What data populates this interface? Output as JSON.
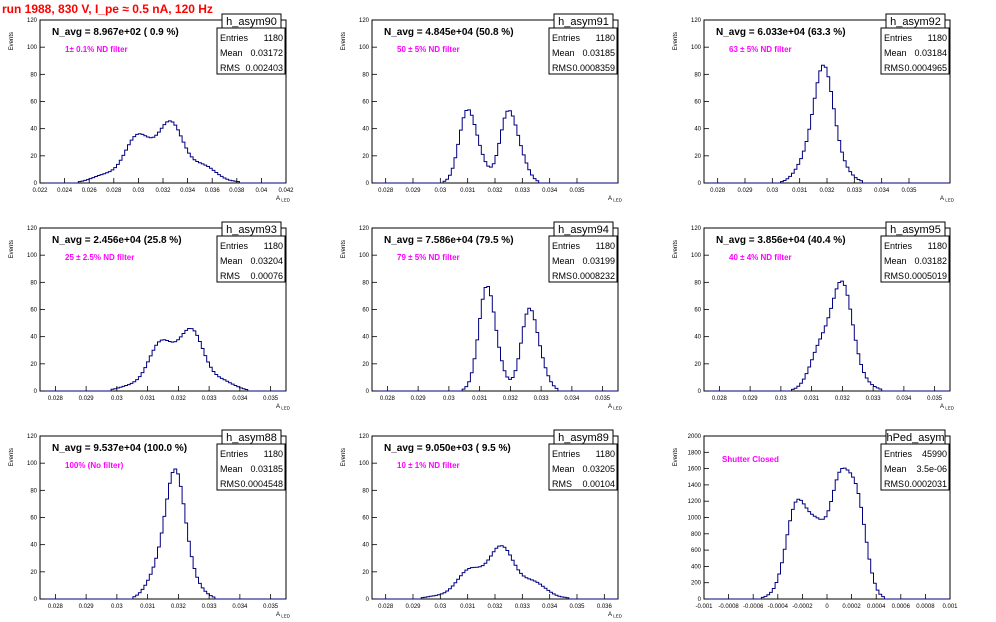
{
  "page": {
    "title": "run 1988,   830 V, I_pe ≈ 0.5 nA, 120 Hz"
  },
  "colors": {
    "title": "#ff0000",
    "annotation": "#ff00ff",
    "histogram": "#000080",
    "frame": "#000000"
  },
  "chart_data": [
    {
      "type": "histogram",
      "name": "h_asym90",
      "title": "N_avg = 8.967e+02 ( 0.9 %)",
      "annotation": "1± 0.1% ND filter",
      "stats": {
        "entries": "1180",
        "mean": "0.03172",
        "rms": "0.002403"
      },
      "xlabel": "A_LED",
      "ylabel": "Events",
      "xlim": [
        0.022,
        0.042
      ],
      "ylim": [
        0,
        120
      ],
      "xticks": [
        "0.022",
        "0.024",
        "0.026",
        "0.028",
        "0.03",
        "0.032",
        "0.034",
        "0.036",
        "0.038",
        "0.04",
        "0.042"
      ],
      "yticks": [
        "0",
        "20",
        "40",
        "60",
        "80",
        "100",
        "120"
      ],
      "peaks": [
        {
          "x": 0.03172,
          "w": 0.0024,
          "h": 42
        }
      ]
    },
    {
      "type": "histogram",
      "name": "h_asym91",
      "title": "N_avg = 4.845e+04 (50.8 %)",
      "annotation": "50 ± 5% ND filter",
      "stats": {
        "entries": "1180",
        "mean": "0.03185",
        "rms": "0.0008359"
      },
      "xlabel": "A_LED",
      "ylabel": "Events",
      "xlim": [
        0.0275,
        0.0365
      ],
      "ylim": [
        0,
        120
      ],
      "xticks": [
        "0.028",
        "0.029",
        "0.03",
        "0.031",
        "0.032",
        "0.033",
        "0.034",
        "0.035"
      ],
      "yticks": [
        "0",
        "20",
        "40",
        "60",
        "80",
        "100",
        "120"
      ],
      "peaks": [
        {
          "x": 0.0311,
          "w": 0.00035,
          "h": 55
        },
        {
          "x": 0.0326,
          "w": 0.00035,
          "h": 55
        }
      ]
    },
    {
      "type": "histogram",
      "name": "h_asym92",
      "title": "N_avg = 6.033e+04 (63.3 %)",
      "annotation": "63 ± 5% ND filter",
      "stats": {
        "entries": "1180",
        "mean": "0.03184",
        "rms": "0.0004965"
      },
      "xlabel": "A_LED",
      "ylabel": "Events",
      "xlim": [
        0.0275,
        0.0365
      ],
      "ylim": [
        0,
        120
      ],
      "xticks": [
        "0.028",
        "0.029",
        "0.03",
        "0.031",
        "0.032",
        "0.033",
        "0.034",
        "0.035"
      ],
      "yticks": [
        "0",
        "20",
        "40",
        "60",
        "80",
        "100",
        "120"
      ],
      "peaks": [
        {
          "x": 0.03184,
          "w": 0.0005,
          "h": 74
        }
      ]
    },
    {
      "type": "histogram",
      "name": "h_asym93",
      "title": "N_avg = 2.456e+04 (25.8 %)",
      "annotation": "25 ± 2.5% ND filter",
      "stats": {
        "entries": "1180",
        "mean": "0.03204",
        "rms": "0.00076"
      },
      "xlabel": "A_LED",
      "ylabel": "Events",
      "xlim": [
        0.0275,
        0.0355
      ],
      "ylim": [
        0,
        120
      ],
      "xticks": [
        "0.028",
        "0.029",
        "0.03",
        "0.031",
        "0.032",
        "0.033",
        "0.034",
        "0.035"
      ],
      "yticks": [
        "0",
        "20",
        "40",
        "60",
        "80",
        "100",
        "120"
      ],
      "peaks": [
        {
          "x": 0.03204,
          "w": 0.0008,
          "h": 45
        }
      ]
    },
    {
      "type": "histogram",
      "name": "h_asym94",
      "title": "N_avg = 7.586e+04 (79.5 %)",
      "annotation": "79 ± 5% ND filter",
      "stats": {
        "entries": "1180",
        "mean": "0.03199",
        "rms": "0.0008232"
      },
      "xlabel": "A_LED",
      "ylabel": "Events",
      "xlim": [
        0.0275,
        0.0355
      ],
      "ylim": [
        0,
        120
      ],
      "xticks": [
        "0.028",
        "0.029",
        "0.03",
        "0.031",
        "0.032",
        "0.033",
        "0.034",
        "0.035"
      ],
      "yticks": [
        "0",
        "20",
        "40",
        "60",
        "80",
        "100",
        "120"
      ],
      "peaks": [
        {
          "x": 0.0313,
          "w": 0.0003,
          "h": 72
        },
        {
          "x": 0.0327,
          "w": 0.0003,
          "h": 60
        }
      ]
    },
    {
      "type": "histogram",
      "name": "h_asym95",
      "title": "N_avg = 3.856e+04 (40.4 %)",
      "annotation": "40 ± 4% ND filter",
      "stats": {
        "entries": "1180",
        "mean": "0.03182",
        "rms": "0.0005019"
      },
      "xlabel": "A_LED",
      "ylabel": "Events",
      "xlim": [
        0.0275,
        0.0355
      ],
      "ylim": [
        0,
        120
      ],
      "xticks": [
        "0.028",
        "0.029",
        "0.03",
        "0.031",
        "0.032",
        "0.033",
        "0.034",
        "0.035"
      ],
      "yticks": [
        "0",
        "20",
        "40",
        "60",
        "80",
        "100",
        "120"
      ],
      "peaks": [
        {
          "x": 0.03182,
          "w": 0.0005,
          "h": 76
        }
      ]
    },
    {
      "type": "histogram",
      "name": "h_asym88",
      "title": "N_avg = 9.537e+04 (100.0 %)",
      "annotation": "100% (No filter)",
      "stats": {
        "entries": "1180",
        "mean": "0.03185",
        "rms": "0.0004548"
      },
      "xlabel": "A_LED",
      "ylabel": "Events",
      "xlim": [
        0.0275,
        0.0355
      ],
      "ylim": [
        0,
        120
      ],
      "xticks": [
        "0.028",
        "0.029",
        "0.03",
        "0.031",
        "0.032",
        "0.033",
        "0.034",
        "0.035"
      ],
      "yticks": [
        "0",
        "20",
        "40",
        "60",
        "80",
        "100",
        "120"
      ],
      "peaks": [
        {
          "x": 0.03185,
          "w": 0.00045,
          "h": 82
        }
      ]
    },
    {
      "type": "histogram",
      "name": "h_asym89",
      "title": "N_avg = 9.050e+03 ( 9.5 %)",
      "annotation": "10 ± 1% ND filter",
      "stats": {
        "entries": "1180",
        "mean": "0.03205",
        "rms": "0.00104"
      },
      "xlabel": "A_LED",
      "ylabel": "Events",
      "xlim": [
        0.0275,
        0.0365
      ],
      "ylim": [
        0,
        120
      ],
      "xticks": [
        "0.028",
        "0.029",
        "0.03",
        "0.031",
        "0.032",
        "0.033",
        "0.034",
        "0.035",
        "0.036"
      ],
      "yticks": [
        "0",
        "20",
        "40",
        "60",
        "80",
        "100",
        "120"
      ],
      "peaks": [
        {
          "x": 0.03205,
          "w": 0.001,
          "h": 34
        }
      ]
    },
    {
      "type": "histogram",
      "name": "hPed_asym",
      "title": "",
      "annotation": "Shutter Closed",
      "stats": {
        "entries": "45990",
        "mean": "3.5e-06",
        "rms": "0.0002031"
      },
      "xlabel": "",
      "ylabel": "Events",
      "xlim": [
        -0.001,
        0.001
      ],
      "ylim": [
        0,
        2000
      ],
      "xticks": [
        "-0.001",
        "-0.0008",
        "-0.0006",
        "-0.0004",
        "-0.0002",
        "0",
        "0.0002",
        "0.0004",
        "0.0006",
        "0.0008",
        "0.001"
      ],
      "yticks": [
        "0",
        "200",
        "400",
        "600",
        "800",
        "1000",
        "1200",
        "1400",
        "1600",
        "1800",
        "2000"
      ],
      "peaks": [
        {
          "x": -0.00018,
          "w": 0.00012,
          "h": 1350
        },
        {
          "x": 0.00017,
          "w": 0.0001,
          "h": 1900
        }
      ]
    }
  ]
}
